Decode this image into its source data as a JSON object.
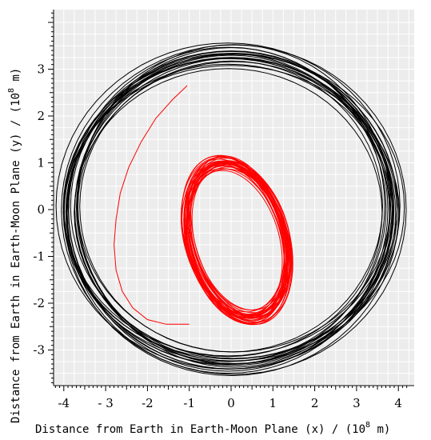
{
  "chart_data": {
    "type": "line",
    "title": "",
    "xlabel_main": "Distance from Earth in Earth-Moon Plane (x) / (10",
    "xlabel_exp": "8",
    "xlabel_tail": " m)",
    "ylabel_main": "Distance from Earth in Earth-Moon Plane (y) / (10",
    "ylabel_exp": "8",
    "ylabel_tail": " m)",
    "xlim": [
      -4.4,
      4.4
    ],
    "ylim": [
      -4.0,
      4.5
    ],
    "x_ticks": [
      -4,
      -3,
      -2,
      -1,
      0,
      1,
      2,
      3,
      4
    ],
    "x_tick_labels": [
      "-4",
      "- 3",
      "-2",
      "-1",
      "0",
      "1",
      "2",
      "3",
      "4"
    ],
    "y_ticks": [
      -3,
      -2,
      -1,
      0,
      1,
      2,
      3
    ],
    "y_tick_labels": [
      "-3",
      "-2",
      "-1",
      "0",
      "1",
      "2",
      "3"
    ],
    "grid": true,
    "series": [
      {
        "color": "#000000",
        "kind": "orbit-ensemble",
        "center": [
          0.0,
          0.0
        ],
        "radius_x": 3.95,
        "radius_y": 3.45,
        "loops": 22
      },
      {
        "color": "#ff0000",
        "kind": "transfer-arc",
        "x": [
          -1.05,
          -1.4,
          -1.8,
          -2.15,
          -2.45,
          -2.65,
          -2.75,
          -2.8,
          -2.75,
          -2.6,
          -2.35,
          -2.0,
          -1.55,
          -1.0
        ],
        "y": [
          2.65,
          2.35,
          1.95,
          1.45,
          0.9,
          0.35,
          -0.2,
          -0.75,
          -1.3,
          -1.75,
          -2.1,
          -2.35,
          -2.45,
          -2.45
        ]
      },
      {
        "color": "#ff0000",
        "kind": "orbit-ensemble",
        "center": [
          0.15,
          -0.65
        ],
        "radius_x": 1.15,
        "radius_y": 1.8,
        "tilt_deg": 20,
        "loops": 30
      }
    ]
  }
}
